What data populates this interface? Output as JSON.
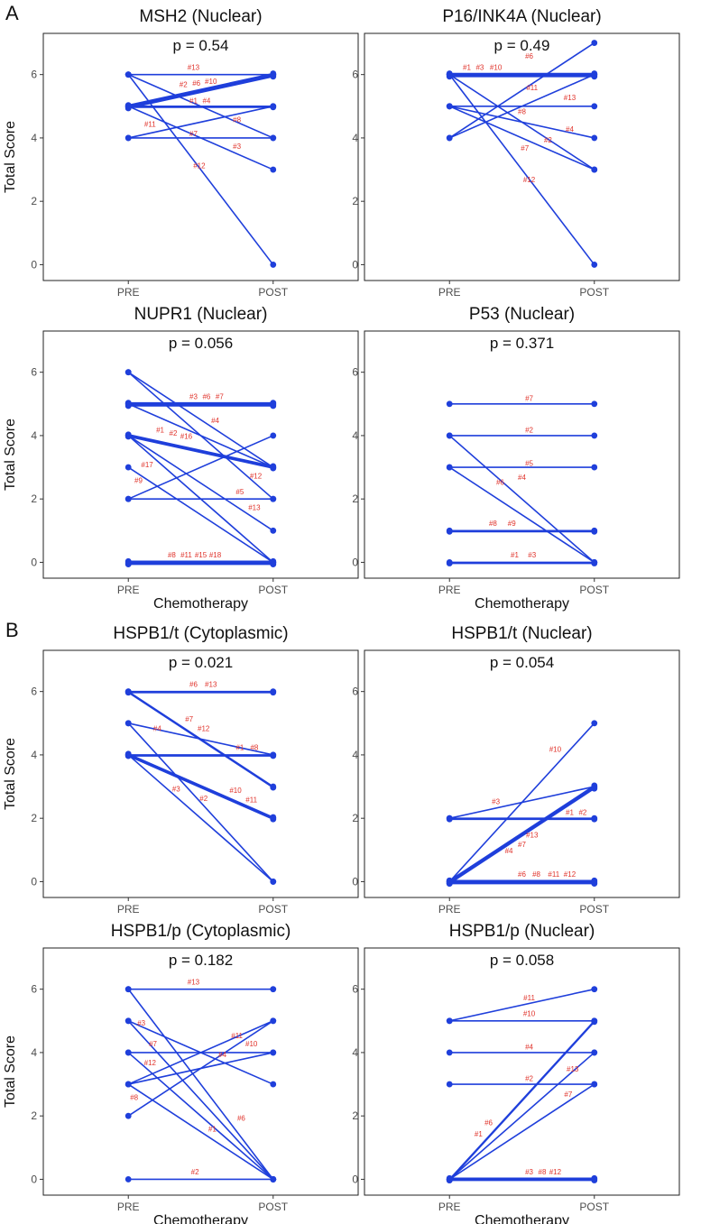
{
  "panel_labels": [
    "A",
    "B"
  ],
  "line_color": "#1f3fdb",
  "label_color": "#e0332b",
  "chart_data": [
    {
      "type": "line",
      "title": "MSH2 (Nuclear)",
      "p_label": "p =  0.54",
      "categories": [
        "PRE",
        "POST"
      ],
      "ylim": [
        -0.5,
        7.3
      ],
      "yticks": [
        0,
        2,
        4,
        6
      ],
      "ylabel": "Total Score",
      "xlabel": "",
      "lines": [
        [
          6,
          6
        ],
        [
          6,
          4
        ],
        [
          6,
          0
        ],
        [
          5,
          6
        ],
        [
          5,
          6
        ],
        [
          5,
          6
        ],
        [
          5,
          6
        ],
        [
          5,
          5
        ],
        [
          5,
          5
        ],
        [
          5,
          3
        ],
        [
          4,
          5
        ],
        [
          4,
          4
        ]
      ],
      "labels": [
        {
          "t": "#13",
          "s": 0.45,
          "v": 6.15
        },
        {
          "t": "#2",
          "s": 0.38,
          "v": 5.6
        },
        {
          "t": "#6",
          "s": 0.47,
          "v": 5.65
        },
        {
          "t": "#10",
          "s": 0.57,
          "v": 5.7
        },
        {
          "t": "#1",
          "s": 0.45,
          "v": 5.1
        },
        {
          "t": "#4",
          "s": 0.54,
          "v": 5.1
        },
        {
          "t": "#11",
          "s": 0.15,
          "v": 4.35
        },
        {
          "t": "#7",
          "s": 0.45,
          "v": 4.05
        },
        {
          "t": "#8",
          "s": 0.75,
          "v": 4.5
        },
        {
          "t": "#3",
          "s": 0.75,
          "v": 3.65
        },
        {
          "t": "#12",
          "s": 0.49,
          "v": 3.05
        }
      ]
    },
    {
      "type": "line",
      "title": "P16/INK4A (Nuclear)",
      "p_label": "p =  0.49",
      "categories": [
        "PRE",
        "POST"
      ],
      "ylim": [
        -0.5,
        7.3
      ],
      "yticks": [
        0,
        2,
        4,
        6
      ],
      "ylabel": "",
      "xlabel": "",
      "lines": [
        [
          6,
          6
        ],
        [
          6,
          6
        ],
        [
          6,
          6
        ],
        [
          6,
          6
        ],
        [
          6,
          3
        ],
        [
          6,
          0
        ],
        [
          5,
          5
        ],
        [
          5,
          4
        ],
        [
          5,
          3
        ],
        [
          4,
          7
        ],
        [
          4,
          6
        ]
      ],
      "labels": [
        {
          "t": "#1",
          "s": 0.12,
          "v": 6.15
        },
        {
          "t": "#3",
          "s": 0.21,
          "v": 6.15
        },
        {
          "t": "#10",
          "s": 0.32,
          "v": 6.15
        },
        {
          "t": "#6",
          "s": 0.55,
          "v": 6.5
        },
        {
          "t": "#11",
          "s": 0.57,
          "v": 5.5
        },
        {
          "t": "#13",
          "s": 0.83,
          "v": 5.2
        },
        {
          "t": "#8",
          "s": 0.5,
          "v": 4.75
        },
        {
          "t": "#4",
          "s": 0.83,
          "v": 4.2
        },
        {
          "t": "#2",
          "s": 0.68,
          "v": 3.85
        },
        {
          "t": "#7",
          "s": 0.52,
          "v": 3.6
        },
        {
          "t": "#12",
          "s": 0.55,
          "v": 2.6
        }
      ]
    },
    {
      "type": "line",
      "title": "NUPR1 (Nuclear)",
      "p_label": "p =  0.056",
      "categories": [
        "PRE",
        "POST"
      ],
      "ylim": [
        -0.5,
        7.3
      ],
      "yticks": [
        0,
        2,
        4,
        6
      ],
      "ylabel": "Total Score",
      "xlabel": "Chemotherapy",
      "lines": [
        [
          6,
          3
        ],
        [
          6,
          2
        ],
        [
          5,
          5
        ],
        [
          5,
          5
        ],
        [
          5,
          5
        ],
        [
          5,
          5
        ],
        [
          5,
          3
        ],
        [
          4,
          3
        ],
        [
          4,
          3
        ],
        [
          4,
          3
        ],
        [
          4,
          1
        ],
        [
          4,
          0
        ],
        [
          3,
          0
        ],
        [
          2,
          4
        ],
        [
          2,
          2
        ],
        [
          0,
          0
        ],
        [
          0,
          0
        ],
        [
          0,
          0
        ],
        [
          0,
          0
        ]
      ],
      "labels": [
        {
          "t": "#3",
          "s": 0.45,
          "v": 5.15
        },
        {
          "t": "#6",
          "s": 0.54,
          "v": 5.15
        },
        {
          "t": "#7",
          "s": 0.63,
          "v": 5.15
        },
        {
          "t": "#4",
          "s": 0.6,
          "v": 4.4
        },
        {
          "t": "#1",
          "s": 0.22,
          "v": 4.1
        },
        {
          "t": "#2",
          "s": 0.31,
          "v": 4.0
        },
        {
          "t": "#16",
          "s": 0.4,
          "v": 3.9
        },
        {
          "t": "#17",
          "s": 0.13,
          "v": 3.0
        },
        {
          "t": "#12",
          "s": 0.88,
          "v": 2.65
        },
        {
          "t": "#9",
          "s": 0.07,
          "v": 2.5
        },
        {
          "t": "#5",
          "s": 0.77,
          "v": 2.15
        },
        {
          "t": "#13",
          "s": 0.87,
          "v": 1.65
        },
        {
          "t": "#8",
          "s": 0.3,
          "v": 0.15
        },
        {
          "t": "#11",
          "s": 0.4,
          "v": 0.15
        },
        {
          "t": "#15",
          "s": 0.5,
          "v": 0.15
        },
        {
          "t": "#18",
          "s": 0.6,
          "v": 0.15
        }
      ]
    },
    {
      "type": "line",
      "title": "P53 (Nuclear)",
      "p_label": "p =  0.371",
      "categories": [
        "PRE",
        "POST"
      ],
      "ylim": [
        -0.5,
        7.3
      ],
      "yticks": [
        0,
        2,
        4,
        6
      ],
      "ylabel": "",
      "xlabel": "Chemotherapy",
      "lines": [
        [
          5,
          5
        ],
        [
          4,
          4
        ],
        [
          4,
          0
        ],
        [
          3,
          3
        ],
        [
          3,
          0
        ],
        [
          1,
          1
        ],
        [
          1,
          1
        ],
        [
          0,
          0
        ],
        [
          0,
          0
        ]
      ],
      "labels": [
        {
          "t": "#7",
          "s": 0.55,
          "v": 5.1
        },
        {
          "t": "#2",
          "s": 0.55,
          "v": 4.1
        },
        {
          "t": "#5",
          "s": 0.55,
          "v": 3.05
        },
        {
          "t": "#4",
          "s": 0.5,
          "v": 2.6
        },
        {
          "t": "#6",
          "s": 0.35,
          "v": 2.45
        },
        {
          "t": "#8",
          "s": 0.3,
          "v": 1.15
        },
        {
          "t": "#9",
          "s": 0.43,
          "v": 1.15
        },
        {
          "t": "#1",
          "s": 0.45,
          "v": 0.15
        },
        {
          "t": "#3",
          "s": 0.57,
          "v": 0.15
        }
      ]
    },
    {
      "type": "line",
      "title": "HSPB1/t (Cytoplasmic)",
      "p_label": "p =  0.021",
      "categories": [
        "PRE",
        "POST"
      ],
      "ylim": [
        -0.5,
        7.3
      ],
      "yticks": [
        0,
        2,
        4,
        6
      ],
      "ylabel": "Total Score",
      "xlabel": "",
      "lines": [
        [
          6,
          6
        ],
        [
          6,
          6
        ],
        [
          6,
          3
        ],
        [
          6,
          3
        ],
        [
          5,
          4
        ],
        [
          5,
          0
        ],
        [
          4,
          4
        ],
        [
          4,
          4
        ],
        [
          4,
          2
        ],
        [
          4,
          2
        ],
        [
          4,
          2
        ],
        [
          4,
          0
        ]
      ],
      "labels": [
        {
          "t": "#6",
          "s": 0.45,
          "v": 6.15
        },
        {
          "t": "#13",
          "s": 0.57,
          "v": 6.15
        },
        {
          "t": "#7",
          "s": 0.42,
          "v": 5.05
        },
        {
          "t": "#12",
          "s": 0.52,
          "v": 4.75
        },
        {
          "t": "#4",
          "s": 0.2,
          "v": 4.75
        },
        {
          "t": "#1",
          "s": 0.77,
          "v": 4.15
        },
        {
          "t": "#8",
          "s": 0.87,
          "v": 4.15
        },
        {
          "t": "#10",
          "s": 0.74,
          "v": 2.8
        },
        {
          "t": "#11",
          "s": 0.85,
          "v": 2.5
        },
        {
          "t": "#3",
          "s": 0.33,
          "v": 2.85
        },
        {
          "t": "#2",
          "s": 0.52,
          "v": 2.55
        }
      ]
    },
    {
      "type": "line",
      "title": "HSPB1/t (Nuclear)",
      "p_label": "p =  0.054",
      "categories": [
        "PRE",
        "POST"
      ],
      "ylim": [
        -0.5,
        7.3
      ],
      "yticks": [
        0,
        2,
        4,
        6
      ],
      "ylabel": "",
      "xlabel": "",
      "lines": [
        [
          2,
          3
        ],
        [
          2,
          2
        ],
        [
          2,
          2
        ],
        [
          0,
          5
        ],
        [
          0,
          3
        ],
        [
          0,
          3
        ],
        [
          0,
          3
        ],
        [
          0,
          3
        ],
        [
          0,
          0
        ],
        [
          0,
          0
        ],
        [
          0,
          0
        ],
        [
          0,
          0
        ]
      ],
      "labels": [
        {
          "t": "#3",
          "s": 0.32,
          "v": 2.45
        },
        {
          "t": "#10",
          "s": 0.73,
          "v": 4.1
        },
        {
          "t": "#1",
          "s": 0.83,
          "v": 2.1
        },
        {
          "t": "#2",
          "s": 0.92,
          "v": 2.1
        },
        {
          "t": "#13",
          "s": 0.57,
          "v": 1.4
        },
        {
          "t": "#7",
          "s": 0.5,
          "v": 1.1
        },
        {
          "t": "#4",
          "s": 0.41,
          "v": 0.9
        },
        {
          "t": "#6",
          "s": 0.5,
          "v": 0.15
        },
        {
          "t": "#8",
          "s": 0.6,
          "v": 0.15
        },
        {
          "t": "#11",
          "s": 0.72,
          "v": 0.15
        },
        {
          "t": "#12",
          "s": 0.83,
          "v": 0.15
        }
      ]
    },
    {
      "type": "line",
      "title": "HSPB1/p (Cytoplasmic)",
      "p_label": "p =  0.182",
      "categories": [
        "PRE",
        "POST"
      ],
      "ylim": [
        -0.5,
        7.3
      ],
      "yticks": [
        0,
        2,
        4,
        6
      ],
      "ylabel": "Total Score",
      "xlabel": "Chemotherapy",
      "lines": [
        [
          6,
          6
        ],
        [
          6,
          0
        ],
        [
          5,
          3
        ],
        [
          5,
          0
        ],
        [
          4,
          4
        ],
        [
          4,
          0
        ],
        [
          3,
          5
        ],
        [
          3,
          4
        ],
        [
          3,
          0
        ],
        [
          2,
          5
        ],
        [
          0,
          0
        ]
      ],
      "labels": [
        {
          "t": "#13",
          "s": 0.45,
          "v": 6.15
        },
        {
          "t": "#3",
          "s": 0.09,
          "v": 4.85
        },
        {
          "t": "#11",
          "s": 0.75,
          "v": 4.45
        },
        {
          "t": "#7",
          "s": 0.17,
          "v": 4.2
        },
        {
          "t": "#10",
          "s": 0.85,
          "v": 4.2
        },
        {
          "t": "#4",
          "s": 0.65,
          "v": 3.85
        },
        {
          "t": "#12",
          "s": 0.15,
          "v": 3.6
        },
        {
          "t": "#8",
          "s": 0.04,
          "v": 2.5
        },
        {
          "t": "#6",
          "s": 0.78,
          "v": 1.85
        },
        {
          "t": "#1",
          "s": 0.58,
          "v": 1.5
        },
        {
          "t": "#2",
          "s": 0.46,
          "v": 0.15
        }
      ]
    },
    {
      "type": "line",
      "title": "HSPB1/p (Nuclear)",
      "p_label": "p = 0.058",
      "categories": [
        "PRE",
        "POST"
      ],
      "ylim": [
        -0.5,
        7.3
      ],
      "yticks": [
        0,
        2,
        4,
        6
      ],
      "ylabel": "",
      "xlabel": "Chemotherapy",
      "lines": [
        [
          5,
          6
        ],
        [
          5,
          5
        ],
        [
          4,
          4
        ],
        [
          3,
          3
        ],
        [
          0,
          5
        ],
        [
          0,
          5
        ],
        [
          0,
          4
        ],
        [
          0,
          3
        ],
        [
          0,
          0
        ],
        [
          0,
          0
        ],
        [
          0,
          0
        ]
      ],
      "labels": [
        {
          "t": "#11",
          "s": 0.55,
          "v": 5.65
        },
        {
          "t": "#10",
          "s": 0.55,
          "v": 5.15
        },
        {
          "t": "#4",
          "s": 0.55,
          "v": 4.1
        },
        {
          "t": "#2",
          "s": 0.55,
          "v": 3.1
        },
        {
          "t": "#13",
          "s": 0.85,
          "v": 3.4
        },
        {
          "t": "#7",
          "s": 0.82,
          "v": 2.6
        },
        {
          "t": "#6",
          "s": 0.27,
          "v": 1.7
        },
        {
          "t": "#1",
          "s": 0.2,
          "v": 1.35
        },
        {
          "t": "#3",
          "s": 0.55,
          "v": 0.15
        },
        {
          "t": "#8",
          "s": 0.64,
          "v": 0.15
        },
        {
          "t": "#12",
          "s": 0.73,
          "v": 0.15
        }
      ]
    }
  ]
}
